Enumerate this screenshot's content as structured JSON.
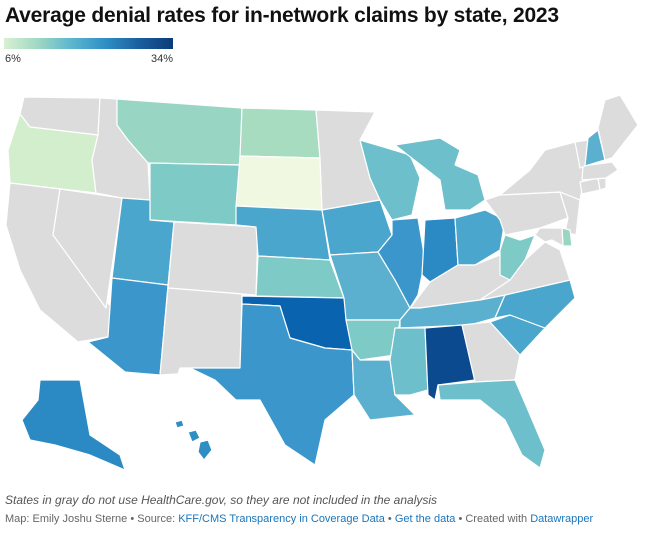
{
  "title": "Average denial rates for in-network claims by state, 2023",
  "legend": {
    "min_label": "6%",
    "max_label": "34%",
    "min": 6,
    "max": 34,
    "colors": [
      "#d9f0d3",
      "#9fd8c4",
      "#5cb6cf",
      "#2f8fc4",
      "#1b5e9e",
      "#0b3b78"
    ]
  },
  "no_data_color": "#dcdcdc",
  "note": "States in gray do not use HealthCare.gov, so they are not included in the analysis",
  "source": {
    "prefix": "Map: Emily Joshu Sterne • Source:",
    "link1": "KFF/CMS Transparency in Coverage Data",
    "sep": "•",
    "link2": "Get the data",
    "suffix": "• Created with",
    "link3": "Datawrapper"
  },
  "states": {
    "WA": null,
    "OR": "#d3eecd",
    "CA": null,
    "NV": null,
    "ID": null,
    "MT": "#98d5c3",
    "WY": "#7dcac6",
    "UT": "#4aa6cd",
    "AZ": "#3b97cb",
    "CO": null,
    "NM": null,
    "ND": "#a8dcc1",
    "SD": "#f0f8e2",
    "NE": "#4aa6cd",
    "KS": "#7dcac6",
    "OK": "#0a63ae",
    "TX": "#3b97cb",
    "MN": null,
    "IA": "#4aa6cd",
    "MO": "#5cb0cf",
    "AR": "#7dcac6",
    "LA": "#5cb0cf",
    "WI": "#6cbfcb",
    "IL": "#3b97cb",
    "MI": "#6cbfcb",
    "IN": "#2b89c4",
    "OH": "#4aa6cd",
    "KY": null,
    "TN": "#5cb0cf",
    "MS": "#6cbfcb",
    "AL": "#0b4a8f",
    "GA": null,
    "FL": "#6cbfcb",
    "SC": "#4aa6cd",
    "NC": "#4aa6cd",
    "VA": null,
    "WV": "#7dcac6",
    "PA": null,
    "NY": null,
    "NJ": null,
    "DE": "#98d5c3",
    "MD": null,
    "DC": null,
    "CT": null,
    "RI": null,
    "MA": null,
    "VT": null,
    "NH": "#5cb0cf",
    "ME": null,
    "AK": "#2b89c4",
    "HI": "#2f8fc4"
  }
}
